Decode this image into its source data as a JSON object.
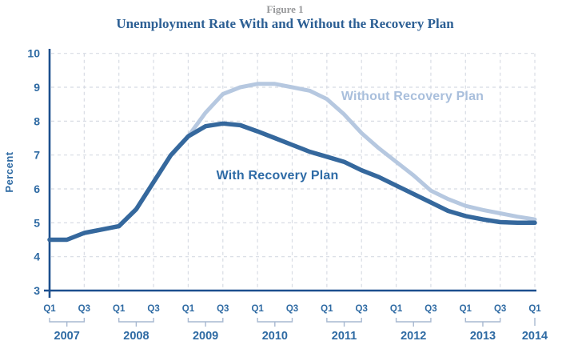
{
  "header": {
    "figure_label": "Figure 1",
    "title": "Unemployment Rate With and Without the Recovery Plan"
  },
  "chart_data": {
    "type": "line",
    "title": "Unemployment Rate With and Without the Recovery Plan",
    "figure_label": "Figure 1",
    "ylabel": "Percent",
    "ylim": [
      3,
      10
    ],
    "yticks": [
      3,
      4,
      5,
      6,
      7,
      8,
      9,
      10
    ],
    "grid": true,
    "legend_position": "inline-labels",
    "categories": [
      "2007 Q1",
      "2007 Q2",
      "2007 Q3",
      "2007 Q4",
      "2008 Q1",
      "2008 Q2",
      "2008 Q3",
      "2008 Q4",
      "2009 Q1",
      "2009 Q2",
      "2009 Q3",
      "2009 Q4",
      "2010 Q1",
      "2010 Q2",
      "2010 Q3",
      "2010 Q4",
      "2011 Q1",
      "2011 Q2",
      "2011 Q3",
      "2011 Q4",
      "2012 Q1",
      "2012 Q2",
      "2012 Q3",
      "2012 Q4",
      "2013 Q1",
      "2013 Q2",
      "2013 Q3",
      "2013 Q4",
      "2014 Q1"
    ],
    "series": [
      {
        "name": "Without Recovery Plan",
        "slug": "without",
        "color": "#b6c8e0",
        "stroke_width": 5,
        "values": [
          4.5,
          4.5,
          4.7,
          4.8,
          4.9,
          5.4,
          6.2,
          7.0,
          7.55,
          8.25,
          8.8,
          9.0,
          9.1,
          9.1,
          9.0,
          8.9,
          8.65,
          8.2,
          7.65,
          7.2,
          6.8,
          6.4,
          5.95,
          5.7,
          5.5,
          5.38,
          5.28,
          5.18,
          5.1
        ]
      },
      {
        "name": "With Recovery Plan",
        "slug": "with",
        "color": "#35689d",
        "stroke_width": 5.5,
        "values": [
          4.5,
          4.5,
          4.7,
          4.8,
          4.9,
          5.4,
          6.2,
          7.0,
          7.55,
          7.85,
          7.93,
          7.88,
          7.7,
          7.5,
          7.3,
          7.1,
          6.95,
          6.8,
          6.55,
          6.35,
          6.1,
          5.85,
          5.6,
          5.35,
          5.2,
          5.1,
          5.02,
          5.0,
          5.0
        ]
      }
    ],
    "series_labels": {
      "without": "Without Recovery Plan",
      "with": "With Recovery Plan"
    },
    "x_ticks": [
      {
        "i": 0,
        "label": "Q1"
      },
      {
        "i": 2,
        "label": "Q3"
      },
      {
        "i": 4,
        "label": "Q1"
      },
      {
        "i": 6,
        "label": "Q3"
      },
      {
        "i": 8,
        "label": "Q1"
      },
      {
        "i": 10,
        "label": "Q3"
      },
      {
        "i": 12,
        "label": "Q1"
      },
      {
        "i": 14,
        "label": "Q3"
      },
      {
        "i": 16,
        "label": "Q1"
      },
      {
        "i": 18,
        "label": "Q3"
      },
      {
        "i": 20,
        "label": "Q1"
      },
      {
        "i": 22,
        "label": "Q3"
      },
      {
        "i": 24,
        "label": "Q1"
      },
      {
        "i": 26,
        "label": "Q3"
      },
      {
        "i": 28,
        "label": "Q1"
      }
    ],
    "year_groups": [
      {
        "label": "2007",
        "q1": 0
      },
      {
        "label": "2008",
        "q1": 4
      },
      {
        "label": "2009",
        "q1": 8
      },
      {
        "label": "2010",
        "q1": 12
      },
      {
        "label": "2011",
        "q1": 16
      },
      {
        "label": "2012",
        "q1": 20
      },
      {
        "label": "2013",
        "q1": 24
      },
      {
        "label": "2014",
        "q1": 28,
        "single_tick": true
      }
    ],
    "colors": {
      "axis": "#1c4f8e",
      "grid": "#d8dce4",
      "tick_text": "#2e6aa3",
      "bracket": "#a7b8d0",
      "title_text": "#2c5f94",
      "figure_text": "#97989a",
      "with_line": "#35689d",
      "without_line": "#b6c8e0",
      "with_label": "#2e6ba6",
      "without_label": "#a9bfdc"
    }
  }
}
